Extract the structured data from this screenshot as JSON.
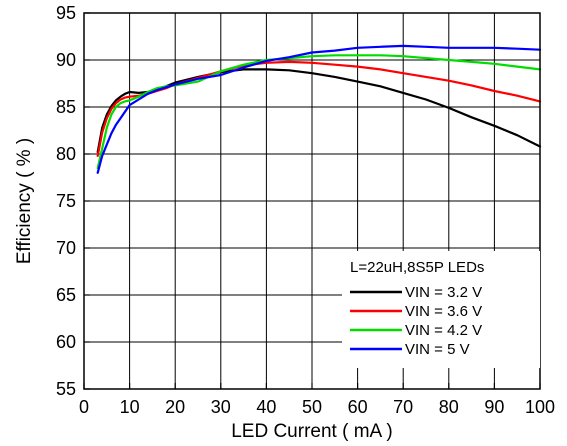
{
  "chart_data": {
    "type": "line",
    "xlabel": "LED Current ( mA )",
    "ylabel": "Efficiency ( % )",
    "xlim": [
      0,
      100
    ],
    "ylim": [
      55,
      95
    ],
    "xticks": [
      0,
      10,
      20,
      30,
      40,
      50,
      60,
      70,
      80,
      90,
      100
    ],
    "yticks": [
      55,
      60,
      65,
      70,
      75,
      80,
      85,
      90,
      95
    ],
    "grid": true,
    "legend_title": "L=22uH,8S5P LEDs",
    "legend_position": "bottom-right",
    "series": [
      {
        "name": "VIN = 3.2 V",
        "color": "#000000",
        "x": [
          3,
          4,
          5,
          6,
          7,
          8,
          9,
          10,
          12,
          14,
          16,
          18,
          20,
          25,
          30,
          35,
          40,
          45,
          50,
          55,
          60,
          65,
          70,
          75,
          80,
          85,
          90,
          95,
          100
        ],
        "y": [
          80.2,
          82.8,
          84.2,
          85.1,
          85.7,
          86.1,
          86.4,
          86.6,
          86.5,
          86.6,
          86.9,
          87.2,
          87.6,
          88.2,
          88.7,
          89.0,
          89.0,
          88.9,
          88.6,
          88.2,
          87.7,
          87.2,
          86.5,
          85.8,
          84.9,
          83.9,
          83.0,
          82.0,
          80.8
        ]
      },
      {
        "name": "VIN = 3.6 V",
        "color": "#ff0000",
        "x": [
          3,
          4,
          5,
          6,
          7,
          8,
          9,
          10,
          12,
          14,
          16,
          18,
          20,
          25,
          30,
          35,
          40,
          45,
          50,
          55,
          60,
          65,
          70,
          75,
          80,
          85,
          90,
          95,
          100
        ],
        "y": [
          79.8,
          82.3,
          83.8,
          84.8,
          85.4,
          85.8,
          86.0,
          86.1,
          86.2,
          86.4,
          86.7,
          87.0,
          87.4,
          88.1,
          88.8,
          89.4,
          89.7,
          89.8,
          89.7,
          89.5,
          89.3,
          89.0,
          88.6,
          88.2,
          87.8,
          87.3,
          86.7,
          86.2,
          85.6
        ]
      },
      {
        "name": "VIN = 4.2 V",
        "color": "#00dd00",
        "x": [
          3,
          4,
          5,
          6,
          7,
          8,
          9,
          10,
          12,
          14,
          16,
          18,
          20,
          25,
          30,
          35,
          40,
          45,
          50,
          55,
          60,
          65,
          70,
          75,
          80,
          85,
          90,
          95,
          100
        ],
        "y": [
          78.5,
          80.6,
          82.8,
          84.2,
          85.0,
          85.4,
          85.6,
          85.7,
          86.1,
          86.6,
          87.0,
          87.2,
          87.3,
          87.7,
          88.8,
          89.5,
          90.0,
          90.2,
          90.4,
          90.5,
          90.5,
          90.5,
          90.4,
          90.2,
          90.0,
          89.8,
          89.6,
          89.3,
          89.0
        ]
      },
      {
        "name": "VIN = 5 V",
        "color": "#0000ff",
        "x": [
          3,
          4,
          5,
          6,
          7,
          8,
          9,
          10,
          12,
          14,
          16,
          18,
          20,
          25,
          30,
          35,
          40,
          45,
          50,
          55,
          60,
          65,
          70,
          75,
          80,
          85,
          90,
          95,
          100
        ],
        "y": [
          78.0,
          79.8,
          81.0,
          82.2,
          83.1,
          83.8,
          84.5,
          85.2,
          85.8,
          86.4,
          86.8,
          87.1,
          87.4,
          88.0,
          88.4,
          89.2,
          89.9,
          90.3,
          90.8,
          91.0,
          91.3,
          91.4,
          91.5,
          91.4,
          91.3,
          91.3,
          91.3,
          91.2,
          91.1
        ]
      }
    ]
  }
}
